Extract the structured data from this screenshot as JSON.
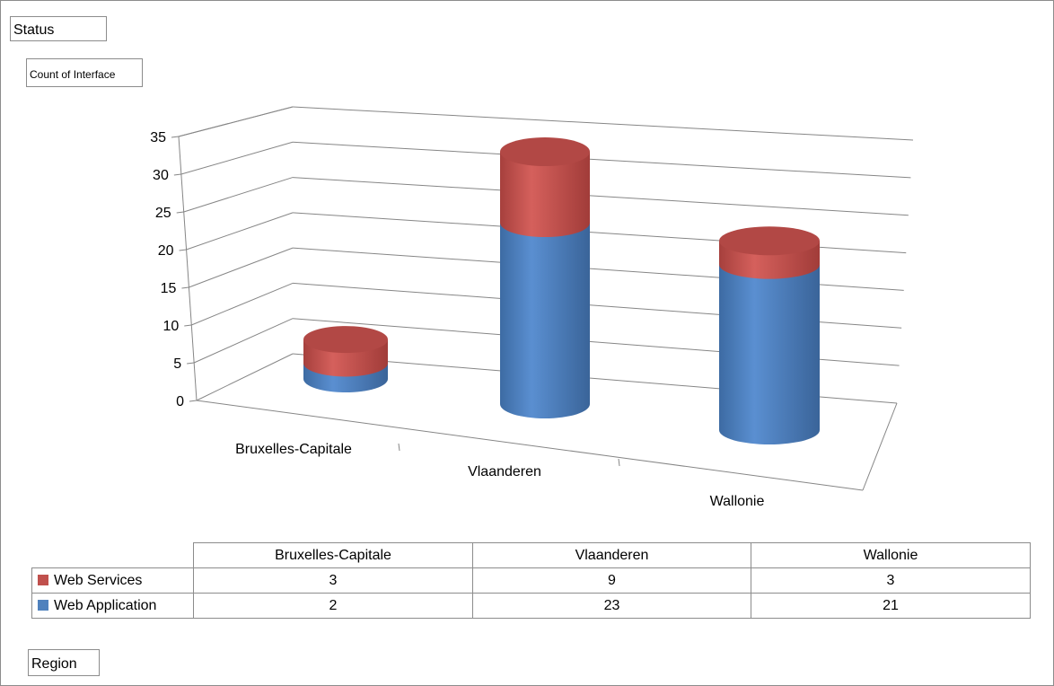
{
  "filters": {
    "status_label": "Status",
    "value_label": "Count of Interface",
    "region_label": "Region"
  },
  "colors": {
    "web_services": "#c0504d",
    "web_application": "#4f81bd"
  },
  "chart_data": {
    "type": "bar",
    "subtype": "stacked-3d-cylinder",
    "categories": [
      "Bruxelles-Capitale",
      "Vlaanderen",
      "Wallonie"
    ],
    "series": [
      {
        "name": "Web Application",
        "values": [
          2,
          23,
          21
        ]
      },
      {
        "name": "Web Services",
        "values": [
          3,
          9,
          3
        ]
      }
    ],
    "ylim": [
      0,
      35
    ],
    "yticks": [
      "0",
      "5",
      "10",
      "15",
      "20",
      "25",
      "30",
      "35"
    ],
    "grid": true,
    "legend": "data-table-below"
  },
  "table": {
    "headers": [
      "Bruxelles-Capitale",
      "Vlaanderen",
      "Wallonie"
    ],
    "rows": [
      {
        "label": "Web Services",
        "values": [
          "3",
          "9",
          "3"
        ]
      },
      {
        "label": "Web Application",
        "values": [
          "2",
          "23",
          "21"
        ]
      }
    ]
  }
}
